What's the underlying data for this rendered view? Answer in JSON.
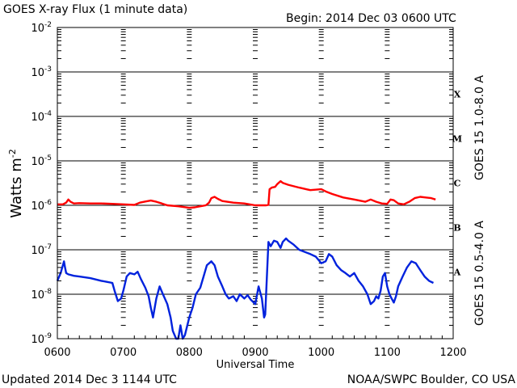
{
  "chart_data": {
    "type": "line",
    "title": "GOES X-ray Flux (1 minute data)",
    "begin_label": "Begin: 2014 Dec 03 0600 UTC",
    "xlabel": "Universal Time",
    "ylabel_base": "Watts m",
    "ylabel_exp": "-2",
    "x_ticks": [
      "0600",
      "0700",
      "0800",
      "0900",
      "1000",
      "1100",
      "1200"
    ],
    "x_range": [
      "0600",
      "1200"
    ],
    "y_scale": "log",
    "y_range": [
      1e-09,
      0.01
    ],
    "y_ticks": [
      {
        "base": "10",
        "exp": "-9",
        "value": 1e-09
      },
      {
        "base": "10",
        "exp": "-8",
        "value": 1e-08
      },
      {
        "base": "10",
        "exp": "-7",
        "value": 1e-07
      },
      {
        "base": "10",
        "exp": "-6",
        "value": 1e-06
      },
      {
        "base": "10",
        "exp": "-5",
        "value": 1e-05
      },
      {
        "base": "10",
        "exp": "-4",
        "value": 0.0001
      },
      {
        "base": "10",
        "exp": "-3",
        "value": 0.001
      },
      {
        "base": "10",
        "exp": "-2",
        "value": 0.01
      }
    ],
    "flare_classes": [
      {
        "label": "A",
        "value": 1e-08
      },
      {
        "label": "B",
        "value": 1e-07
      },
      {
        "label": "C",
        "value": 1e-06
      },
      {
        "label": "M",
        "value": 1e-05
      },
      {
        "label": "X",
        "value": 0.0001
      }
    ],
    "series": [
      {
        "name": "GOES 15 1.0-8.0 A",
        "color": "#ff0000",
        "points": [
          [
            "0600",
            1.05e-06
          ],
          [
            "0605",
            1.05e-06
          ],
          [
            "0608",
            1.15e-06
          ],
          [
            "0610",
            1.35e-06
          ],
          [
            "0612",
            1.2e-06
          ],
          [
            "0615",
            1.1e-06
          ],
          [
            "0620",
            1.12e-06
          ],
          [
            "0630",
            1.1e-06
          ],
          [
            "0640",
            1.1e-06
          ],
          [
            "0650",
            1.08e-06
          ],
          [
            "0700",
            1.05e-06
          ],
          [
            "0710",
            1.02e-06
          ],
          [
            "0715",
            1.15e-06
          ],
          [
            "0720",
            1.22e-06
          ],
          [
            "0725",
            1.28e-06
          ],
          [
            "0730",
            1.2e-06
          ],
          [
            "0735",
            1.1e-06
          ],
          [
            "0740",
            1e-06
          ],
          [
            "0750",
            9.5e-07
          ],
          [
            "0800",
            8.8e-07
          ],
          [
            "0805",
            9e-07
          ],
          [
            "0810",
            9.5e-07
          ],
          [
            "0815",
            1e-06
          ],
          [
            "0818",
            1.15e-06
          ],
          [
            "0820",
            1.45e-06
          ],
          [
            "0823",
            1.55e-06
          ],
          [
            "0826",
            1.4e-06
          ],
          [
            "0830",
            1.25e-06
          ],
          [
            "0840",
            1.15e-06
          ],
          [
            "0850",
            1.1e-06
          ],
          [
            "0900",
            1e-06
          ],
          [
            "0910",
            1e-06
          ],
          [
            "0912",
            1.02e-06
          ],
          [
            "0913",
            2.3e-06
          ],
          [
            "0915",
            2.5e-06
          ],
          [
            "0918",
            2.6e-06
          ],
          [
            "0920",
            3e-06
          ],
          [
            "0923",
            3.5e-06
          ],
          [
            "0925",
            3.2e-06
          ],
          [
            "0930",
            2.9e-06
          ],
          [
            "0940",
            2.5e-06
          ],
          [
            "0950",
            2.2e-06
          ],
          [
            "1000",
            2.3e-06
          ],
          [
            "1005",
            2e-06
          ],
          [
            "1010",
            1.8e-06
          ],
          [
            "1020",
            1.5e-06
          ],
          [
            "1030",
            1.35e-06
          ],
          [
            "1040",
            1.2e-06
          ],
          [
            "1045",
            1.35e-06
          ],
          [
            "1050",
            1.2e-06
          ],
          [
            "1055",
            1.1e-06
          ],
          [
            "1100",
            1.08e-06
          ],
          [
            "1103",
            1.35e-06
          ],
          [
            "1106",
            1.3e-06
          ],
          [
            "1110",
            1.1e-06
          ],
          [
            "1115",
            1.05e-06
          ],
          [
            "1120",
            1.2e-06
          ],
          [
            "1125",
            1.45e-06
          ],
          [
            "1130",
            1.55e-06
          ],
          [
            "1135",
            1.5e-06
          ],
          [
            "1140",
            1.45e-06
          ],
          [
            "1144",
            1.35e-06
          ]
        ]
      },
      {
        "name": "GOES 15 0.5-4.0 A",
        "color": "#0022dd",
        "points": [
          [
            "0600",
            2e-08
          ],
          [
            "0603",
            3e-08
          ],
          [
            "0606",
            5.5e-08
          ],
          [
            "0607",
            4e-08
          ],
          [
            "0608",
            3e-08
          ],
          [
            "0610",
            2.8e-08
          ],
          [
            "0615",
            2.6e-08
          ],
          [
            "0620",
            2.5e-08
          ],
          [
            "0630",
            2.3e-08
          ],
          [
            "0640",
            2e-08
          ],
          [
            "0645",
            1.9e-08
          ],
          [
            "0650",
            1.8e-08
          ],
          [
            "0652",
            1.2e-08
          ],
          [
            "0655",
            7e-09
          ],
          [
            "0658",
            8e-09
          ],
          [
            "0700",
            1.2e-08
          ],
          [
            "0703",
            2.5e-08
          ],
          [
            "0706",
            3e-08
          ],
          [
            "0710",
            2.8e-08
          ],
          [
            "0713",
            3.2e-08
          ],
          [
            "0716",
            2.2e-08
          ],
          [
            "0720",
            1.4e-08
          ],
          [
            "0723",
            9e-09
          ],
          [
            "0725",
            5e-09
          ],
          [
            "0727",
            3e-09
          ],
          [
            "0730",
            8e-09
          ],
          [
            "0733",
            1.5e-08
          ],
          [
            "0736",
            1e-08
          ],
          [
            "0740",
            6e-09
          ],
          [
            "0743",
            3e-09
          ],
          [
            "0745",
            1.5e-09
          ],
          [
            "0748",
            1e-09
          ],
          [
            "0750",
            1e-09
          ],
          [
            "0752",
            2e-09
          ],
          [
            "0754",
            1e-09
          ],
          [
            "0756",
            1.2e-09
          ],
          [
            "0800",
            3e-09
          ],
          [
            "0803",
            5e-09
          ],
          [
            "0806",
            1e-08
          ],
          [
            "0810",
            1.4e-08
          ],
          [
            "0813",
            2.5e-08
          ],
          [
            "0816",
            4.5e-08
          ],
          [
            "0820",
            5.5e-08
          ],
          [
            "0823",
            4.5e-08
          ],
          [
            "0826",
            2.5e-08
          ],
          [
            "0830",
            1.5e-08
          ],
          [
            "0833",
            1e-08
          ],
          [
            "0836",
            8e-09
          ],
          [
            "0840",
            9e-09
          ],
          [
            "0843",
            7e-09
          ],
          [
            "0846",
            1e-08
          ],
          [
            "0850",
            8e-09
          ],
          [
            "0853",
            9.5e-09
          ],
          [
            "0856",
            7.5e-09
          ],
          [
            "0900",
            6e-09
          ],
          [
            "0903",
            1.5e-08
          ],
          [
            "0906",
            8e-09
          ],
          [
            "0908",
            3e-09
          ],
          [
            "0909",
            3.5e-09
          ],
          [
            "0912",
            1.5e-07
          ],
          [
            "0914",
            1.2e-07
          ],
          [
            "0917",
            1.6e-07
          ],
          [
            "0920",
            1.5e-07
          ],
          [
            "0923",
            1.1e-07
          ],
          [
            "0925",
            1.5e-07
          ],
          [
            "0928",
            1.8e-07
          ],
          [
            "0930",
            1.6e-07
          ],
          [
            "0935",
            1.3e-07
          ],
          [
            "0940",
            1e-07
          ],
          [
            "0950",
            8e-08
          ],
          [
            "0955",
            7e-08
          ],
          [
            "1000",
            5e-08
          ],
          [
            "1004",
            5.5e-08
          ],
          [
            "1007",
            8e-08
          ],
          [
            "1010",
            7e-08
          ],
          [
            "1014",
            4.5e-08
          ],
          [
            "1018",
            3.5e-08
          ],
          [
            "1022",
            3e-08
          ],
          [
            "1026",
            2.5e-08
          ],
          [
            "1030",
            3e-08
          ],
          [
            "1034",
            2e-08
          ],
          [
            "1038",
            1.5e-08
          ],
          [
            "1042",
            1e-08
          ],
          [
            "1045",
            6e-09
          ],
          [
            "1048",
            7e-09
          ],
          [
            "1050",
            9e-09
          ],
          [
            "1052",
            8e-09
          ],
          [
            "1054",
            1.2e-08
          ],
          [
            "1056",
            2.5e-08
          ],
          [
            "1058",
            3e-08
          ],
          [
            "1100",
            1.5e-08
          ],
          [
            "1102",
            1e-08
          ],
          [
            "1104",
            8e-09
          ],
          [
            "1106",
            6.5e-09
          ],
          [
            "1108",
            9e-09
          ],
          [
            "1110",
            1.5e-08
          ],
          [
            "1114",
            2.5e-08
          ],
          [
            "1118",
            4e-08
          ],
          [
            "1122",
            5.5e-08
          ],
          [
            "1126",
            5e-08
          ],
          [
            "1130",
            3.5e-08
          ],
          [
            "1134",
            2.5e-08
          ],
          [
            "1138",
            2e-08
          ],
          [
            "1142",
            1.8e-08
          ]
        ]
      }
    ]
  },
  "footer": {
    "updated": "Updated 2014 Dec  3 1144 UTC",
    "source": "NOAA/SWPC Boulder, CO USA"
  }
}
